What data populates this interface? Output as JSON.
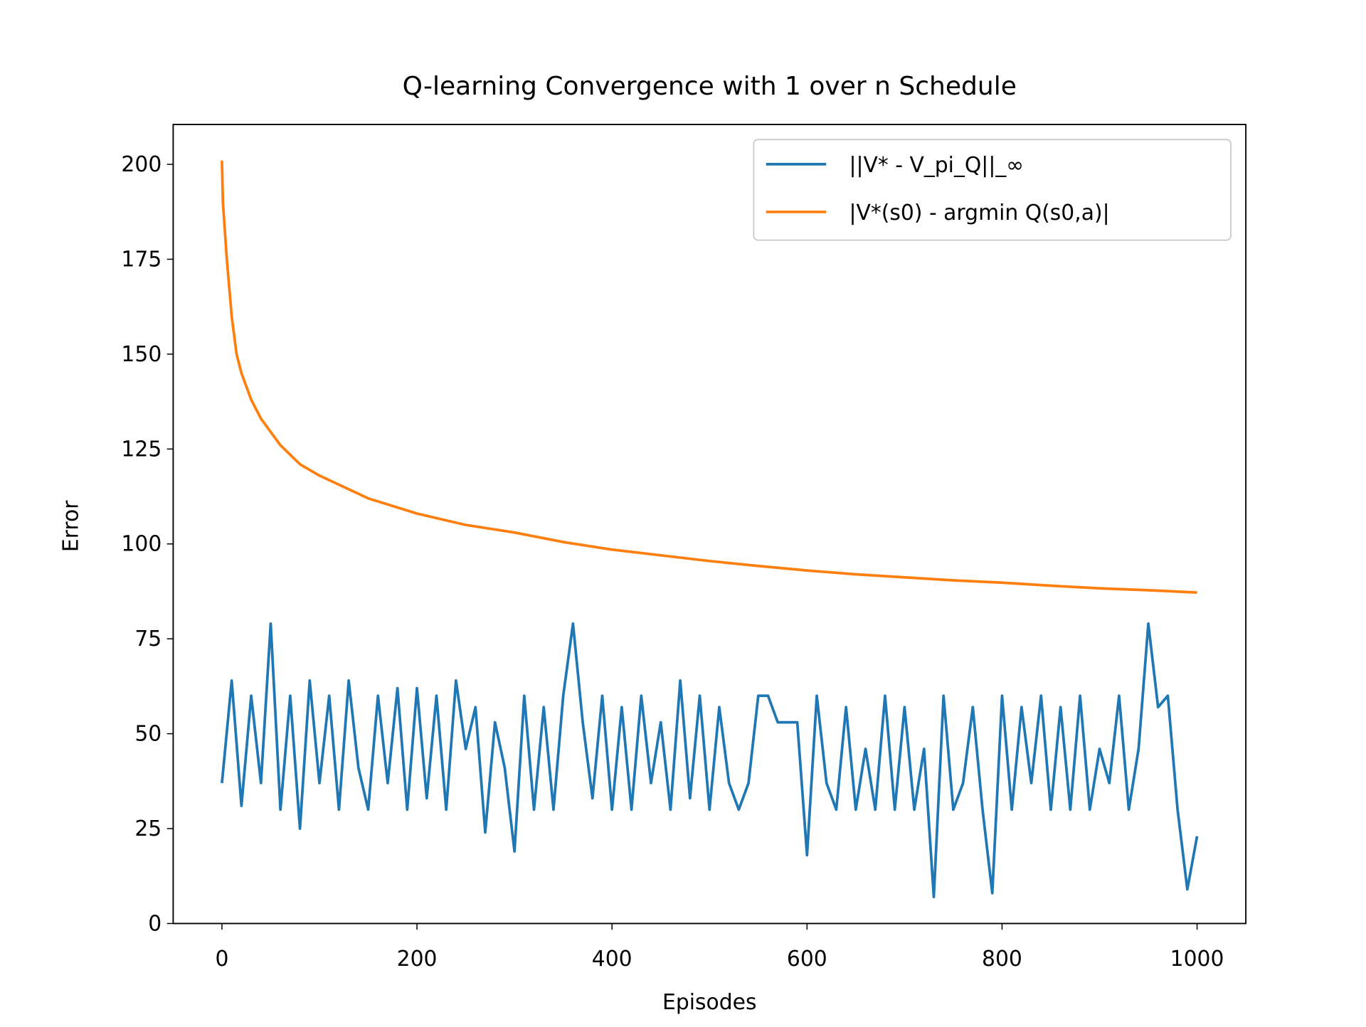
{
  "chart_data": {
    "type": "line",
    "title": "Q-learning Convergence with 1 over n Schedule",
    "x_label": "Episodes",
    "y_label": "Error",
    "xlim": [
      -50,
      1050
    ],
    "ylim": [
      0,
      210.5
    ],
    "xticks": [
      0,
      200,
      400,
      600,
      800,
      1000
    ],
    "yticks": [
      0,
      25,
      50,
      75,
      100,
      125,
      150,
      175,
      200
    ],
    "legend": "upper right",
    "series": [
      {
        "name": "||V* - V_pi_Q||_∞",
        "color": "#1f77b4",
        "x": [
          0,
          10,
          20,
          30,
          40,
          50,
          60,
          70,
          80,
          90,
          100,
          110,
          120,
          130,
          140,
          150,
          160,
          170,
          180,
          190,
          200,
          210,
          220,
          230,
          240,
          250,
          260,
          270,
          280,
          290,
          300,
          310,
          320,
          330,
          340,
          350,
          360,
          370,
          380,
          390,
          400,
          410,
          420,
          430,
          440,
          450,
          460,
          470,
          480,
          490,
          500,
          510,
          520,
          530,
          540,
          550,
          560,
          570,
          580,
          590,
          600,
          610,
          620,
          630,
          640,
          650,
          660,
          670,
          680,
          690,
          700,
          710,
          720,
          730,
          740,
          750,
          760,
          770,
          780,
          790,
          800,
          810,
          820,
          830,
          840,
          850,
          860,
          870,
          880,
          890,
          900,
          910,
          920,
          930,
          940,
          950,
          960,
          970,
          980,
          990,
          1000
        ],
        "values": [
          37,
          64,
          31,
          60,
          37,
          79,
          30,
          60,
          25,
          64,
          37,
          60,
          30,
          64,
          41,
          30,
          60,
          37,
          62,
          30,
          62,
          33,
          60,
          30,
          64,
          46,
          57,
          24,
          53,
          41,
          19,
          60,
          30,
          57,
          30,
          60,
          79,
          53,
          33,
          60,
          30,
          57,
          30,
          60,
          37,
          53,
          30,
          64,
          33,
          60,
          30,
          57,
          37,
          30,
          37,
          60,
          60,
          53,
          53,
          53,
          18,
          60,
          37,
          30,
          57,
          30,
          46,
          30,
          60,
          30,
          57,
          30,
          46,
          7,
          60,
          30,
          37,
          57,
          30,
          8,
          60,
          30,
          57,
          37,
          60,
          30,
          57,
          30,
          60,
          30,
          46,
          37,
          60,
          30,
          46,
          79,
          57,
          60,
          30,
          9,
          23
        ]
      },
      {
        "name": "|V*(s0) - argmin Q(s0,a)|",
        "color": "#ff7f0e",
        "x": [
          0,
          1,
          5,
          10,
          15,
          20,
          30,
          40,
          50,
          60,
          80,
          100,
          150,
          200,
          250,
          300,
          350,
          400,
          450,
          500,
          550,
          600,
          650,
          700,
          750,
          800,
          850,
          900,
          950,
          1000
        ],
        "values": [
          201,
          190,
          175,
          160,
          150,
          145,
          138,
          133,
          129.5,
          126,
          121,
          118,
          112,
          108,
          105,
          103,
          100.5,
          98.5,
          97,
          95.5,
          94.2,
          93,
          92,
          91.2,
          90.4,
          89.8,
          89,
          88.3,
          87.8,
          87.2
        ]
      }
    ]
  }
}
